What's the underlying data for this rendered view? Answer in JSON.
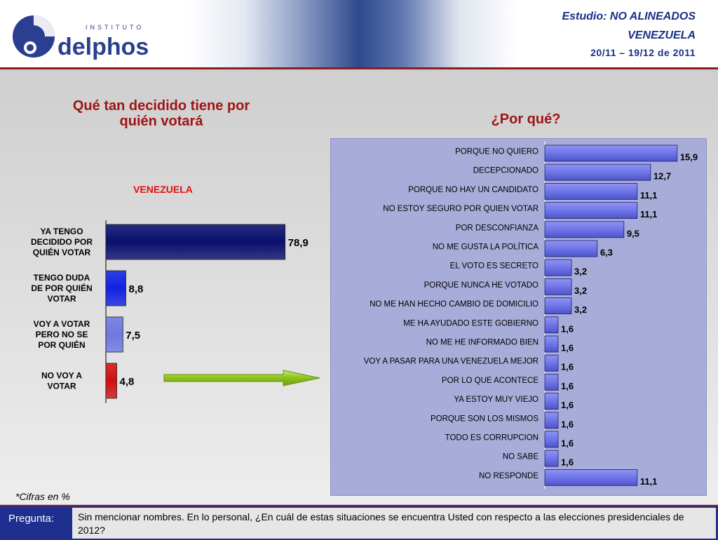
{
  "header": {
    "logo_small": "INSTITUTO",
    "logo_brand": "delphos",
    "study_prefix": "Estudio:",
    "study_name": "NO ALINEADOS",
    "country": "VENEZUELA",
    "date_range": "20/11 – 19/12 de 2011"
  },
  "left_title": "Qué tan decidido tiene por quién votará",
  "right_title": "¿Por qué?",
  "footnote": "*Cifras en %",
  "footer": {
    "label": "Pregunta:",
    "text": "Sin mencionar nombres. En lo personal, ¿En cuál de estas situaciones se encuentra Usted con respecto a las elecciones presidenciales de 2012?"
  },
  "chart_data": [
    {
      "type": "bar",
      "orientation": "horizontal",
      "title": "VENEZUELA",
      "categories": [
        "YA TENGO DECIDIDO POR QUIÉN VOTAR",
        "TENGO DUDA DE POR QUIÉN VOTAR",
        "VOY A VOTAR PERO NO SE POR QUIÉN",
        "NO VOY A VOTAR"
      ],
      "category_lines": [
        [
          "YA TENGO",
          "DECIDIDO POR",
          "QUIÉN VOTAR"
        ],
        [
          "TENGO DUDA",
          "DE POR QUIÉN",
          "VOTAR"
        ],
        [
          "VOY A VOTAR",
          "PERO NO SE",
          "POR QUIÉN"
        ],
        [
          "NO VOY A",
          "VOTAR"
        ]
      ],
      "values": [
        78.9,
        8.8,
        7.5,
        4.8
      ],
      "labels": [
        "78,9",
        "8,8",
        "7,5",
        "4,8"
      ],
      "colors": [
        "#0a0f6e",
        "#1022e0",
        "#6e78e0",
        "#d01010"
      ],
      "xlim": [
        0,
        100
      ]
    },
    {
      "type": "bar",
      "orientation": "horizontal",
      "title": "¿Por qué?",
      "categories": [
        "PORQUE NO QUIERO",
        "DECEPCIONADO",
        "PORQUE NO HAY UN CANDIDATO",
        "NO ESTOY SEGURO POR QUIEN VOTAR",
        "POR DESCONFIANZA",
        "NO ME GUSTA LA POLÍTICA",
        "EL VOTO ES SECRETO",
        "PORQUE NUNCA HE VOTADO",
        "NO ME HAN HECHO CAMBIO DE DOMICILIO",
        "ME HA AYUDADO ESTE GOBIERNO",
        "NO ME HE INFORMADO BIEN",
        "VOY A PASAR PARA UNA VENEZUELA MEJOR",
        "POR LO QUE ACONTECE",
        "YA ESTOY MUY VIEJO",
        "PORQUE SON LOS MISMOS",
        "TODO ES CORRUPCION",
        "NO SABE",
        "NO RESPONDE"
      ],
      "values": [
        15.9,
        12.7,
        11.1,
        11.1,
        9.5,
        6.3,
        3.2,
        3.2,
        3.2,
        1.6,
        1.6,
        1.6,
        1.6,
        1.6,
        1.6,
        1.6,
        1.6,
        11.1
      ],
      "labels": [
        "15,9",
        "12,7",
        "11,1",
        "11,1",
        "9,5",
        "6,3",
        "3,2",
        "3,2",
        "3,2",
        "1,6",
        "1,6",
        "1,6",
        "1,6",
        "1,6",
        "1,6",
        "1,6",
        "1,6",
        "11,1"
      ],
      "bar_color": "#6f75e8",
      "xlim": [
        0,
        16
      ]
    }
  ]
}
